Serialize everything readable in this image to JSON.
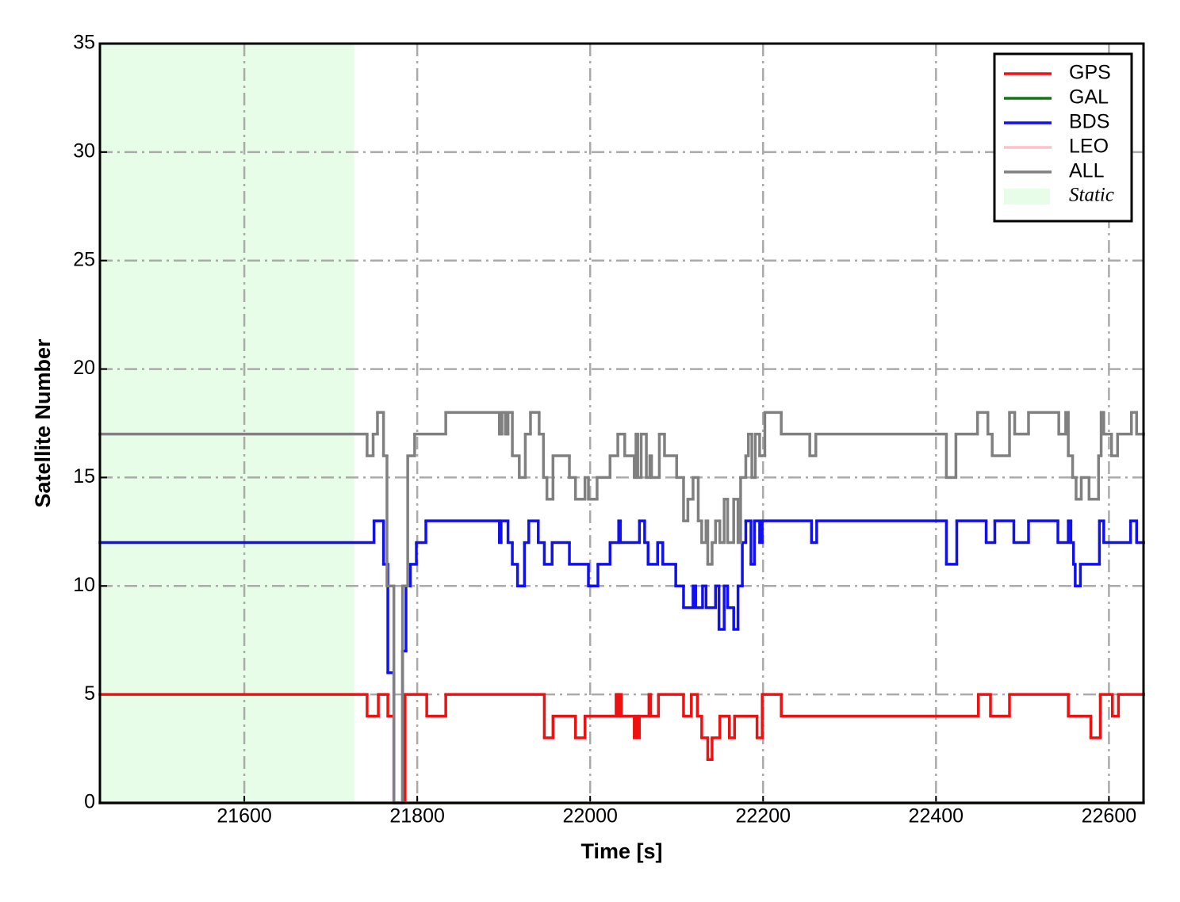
{
  "chart_data": {
    "type": "step",
    "x_label": "Time [s]",
    "y_label": "Satellite Number",
    "xlim": [
      21433,
      22640
    ],
    "ylim": [
      0,
      35
    ],
    "xticks": [
      21600,
      21800,
      22000,
      22200,
      22400,
      22600
    ],
    "yticks": [
      0,
      5,
      10,
      15,
      20,
      25,
      30,
      35
    ],
    "grid": true,
    "legend": "upper right",
    "shaded": {
      "label": "Static",
      "x": [
        21433,
        21727
      ],
      "color": "#e8fde8"
    },
    "series": [
      {
        "name": "GPS",
        "color": "#ee1111",
        "x": [
          21433,
          21742,
          21755,
          21766,
          21773,
          21786,
          21811,
          21833,
          21947,
          21957,
          21983,
          21994,
          22030,
          22032,
          22034,
          22036,
          22051,
          22053,
          22055,
          22057,
          22068,
          22070,
          22079,
          22108,
          22117,
          22124,
          22129,
          22136,
          22141,
          22150,
          22161,
          22167,
          22193,
          22199,
          22221,
          22449,
          22463,
          22485,
          22553,
          22579,
          22590,
          22604,
          22611,
          22640
        ],
        "values": [
          5,
          4,
          5,
          4,
          0,
          5,
          4,
          5,
          3,
          4,
          3,
          4,
          5,
          4,
          5,
          4,
          3,
          4,
          3,
          4,
          5,
          4,
          5,
          4,
          5,
          4,
          3,
          2,
          3,
          4,
          3,
          4,
          3,
          5,
          4,
          5,
          4,
          5,
          4,
          3,
          5,
          4,
          5,
          5
        ]
      },
      {
        "name": "GAL",
        "color": "#117711",
        "x": [
          21433,
          22640
        ],
        "values": [
          0,
          0
        ]
      },
      {
        "name": "BDS",
        "color": "#1111ee",
        "x": [
          21433,
          21750,
          21761,
          21766,
          21773,
          21783,
          21787,
          21792,
          21799,
          21810,
          21895,
          21897,
          21905,
          21910,
          21916,
          21924,
          21929,
          21940,
          21947,
          21956,
          21976,
          21998,
          22009,
          22023,
          22033,
          22035,
          22057,
          22063,
          22067,
          22078,
          22084,
          22099,
          22108,
          22119,
          22122,
          22130,
          22134,
          22145,
          22149,
          22155,
          22159,
          22166,
          22171,
          22176,
          22180,
          22186,
          22190,
          22196,
          22199,
          22256,
          22262,
          22412,
          22424,
          22458,
          22468,
          22490,
          22507,
          22541,
          22553,
          22556,
          22559,
          22561,
          22567,
          22589,
          22594,
          22625,
          22632,
          22640
        ],
        "values": [
          12,
          13,
          11,
          6,
          0,
          7,
          10,
          11,
          12,
          13,
          12,
          13,
          12,
          11,
          10,
          12,
          13,
          12,
          11,
          12,
          11,
          10,
          11,
          12,
          13,
          12,
          13,
          12,
          11,
          12,
          11,
          10,
          9,
          10,
          9,
          10,
          9,
          10,
          8,
          10,
          9,
          8,
          10,
          12,
          13,
          11,
          13,
          12,
          13,
          12,
          13,
          11,
          13,
          12,
          13,
          12,
          13,
          12,
          13,
          12,
          11,
          10,
          11,
          13,
          12,
          13,
          12,
          12
        ]
      },
      {
        "name": "LEO",
        "color": "#ffc0cb",
        "x": [
          21433,
          22640
        ],
        "values": [
          0,
          0
        ]
      },
      {
        "name": "ALL",
        "color": "#808080",
        "x": [
          21433,
          21742,
          21749,
          21754,
          21761,
          21765,
          21773,
          21783,
          21789,
          21797,
          21833,
          21895,
          21898,
          21902,
          21905,
          21910,
          21918,
          21925,
          21931,
          21941,
          21946,
          21950,
          21957,
          21976,
          21983,
          21994,
          21998,
          22008,
          22023,
          22032,
          22040,
          22051,
          22053,
          22055,
          22059,
          22065,
          22069,
          22071,
          22080,
          22086,
          22100,
          22108,
          22113,
          22119,
          22125,
          22129,
          22134,
          22136,
          22141,
          22145,
          22150,
          22155,
          22159,
          22166,
          22171,
          22174,
          22180,
          22183,
          22187,
          22191,
          22196,
          22202,
          22221,
          22254,
          22261,
          22412,
          22423,
          22448,
          22460,
          22465,
          22485,
          22491,
          22507,
          22542,
          22550,
          22553,
          22558,
          22562,
          22568,
          22577,
          22588,
          22591,
          22594,
          22603,
          22610,
          22626,
          22632,
          22640
        ],
        "values": [
          17,
          16,
          17,
          18,
          16,
          10,
          0,
          10,
          16,
          17,
          18,
          17,
          18,
          17,
          18,
          16,
          15,
          17,
          18,
          17,
          15,
          14,
          16,
          15,
          14,
          15,
          14,
          15,
          16,
          17,
          16,
          15,
          17,
          15,
          17,
          15,
          16,
          15,
          17,
          16,
          15,
          13,
          14,
          15,
          13,
          12,
          13,
          11,
          12,
          13,
          12,
          14,
          12,
          14,
          12,
          15,
          16,
          17,
          15,
          17,
          16,
          18,
          17,
          16,
          17,
          15,
          17,
          18,
          17,
          16,
          18,
          17,
          18,
          17,
          18,
          16,
          15,
          14,
          15,
          14,
          16,
          18,
          17,
          16,
          17,
          18,
          17,
          17
        ]
      }
    ]
  }
}
